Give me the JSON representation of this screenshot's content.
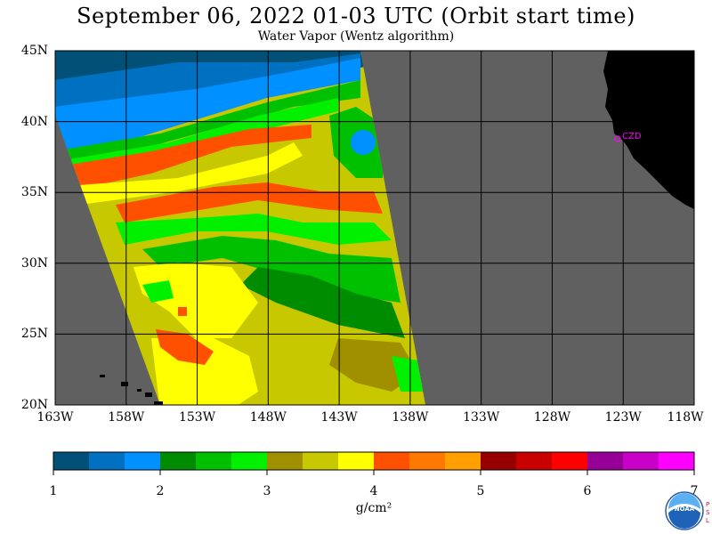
{
  "header": {
    "title": "September 06, 2022  01-03 UTC  (Orbit start time)",
    "subtitle": "Water Vapor (Wentz algorithm)"
  },
  "map": {
    "lat_labels": [
      "45N",
      "40N",
      "35N",
      "30N",
      "25N",
      "20N"
    ],
    "lon_labels": [
      "163W",
      "158W",
      "153W",
      "148W",
      "143W",
      "138W",
      "133W",
      "128W",
      "123W",
      "118W"
    ],
    "station_label": "CZD",
    "colors": {
      "no_data": "#606060",
      "land": "#000000",
      "station": "#ff00ff"
    }
  },
  "colorbar": {
    "tick_labels": [
      "1",
      "2",
      "3",
      "4",
      "5",
      "6",
      "7"
    ],
    "unit": "g/cm²",
    "colors": [
      "#005078",
      "#0070c0",
      "#0090ff",
      "#008c00",
      "#00c000",
      "#00f000",
      "#a09000",
      "#c8c800",
      "#ffff00",
      "#ff5000",
      "#ff7800",
      "#ffa000",
      "#960000",
      "#c80000",
      "#ff0000",
      "#960096",
      "#c800c8",
      "#ff00ff"
    ]
  },
  "branding": {
    "logo_text": "NOAA",
    "side_text": "PSL"
  }
}
